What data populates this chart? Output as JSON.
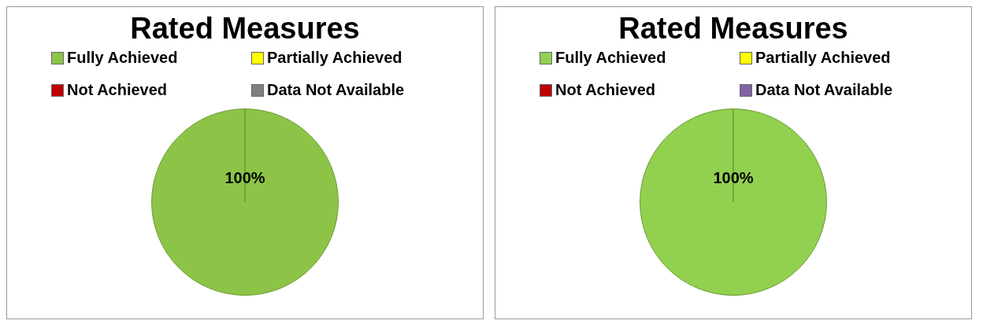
{
  "chart_data": [
    {
      "type": "pie",
      "title": "Rated Measures",
      "categories": [
        "Fully Achieved",
        "Partially Achieved",
        "Not Achieved",
        "Data Not Available"
      ],
      "values": [
        100,
        0,
        0,
        0
      ],
      "colors": [
        "#8dc448",
        "#ffff00",
        "#c00000",
        "#808080"
      ],
      "value_labels": [
        "100%",
        null,
        null,
        null
      ],
      "legend": "top"
    },
    {
      "type": "pie",
      "title": "Rated Measures",
      "categories": [
        "Fully Achieved",
        "Partially Achieved",
        "Not Achieved",
        "Data Not Available"
      ],
      "values": [
        100,
        0,
        0,
        0
      ],
      "colors": [
        "#92d050",
        "#ffff00",
        "#c00000",
        "#8064a2"
      ],
      "value_labels": [
        "100%",
        null,
        null,
        null
      ],
      "legend": "top"
    }
  ]
}
